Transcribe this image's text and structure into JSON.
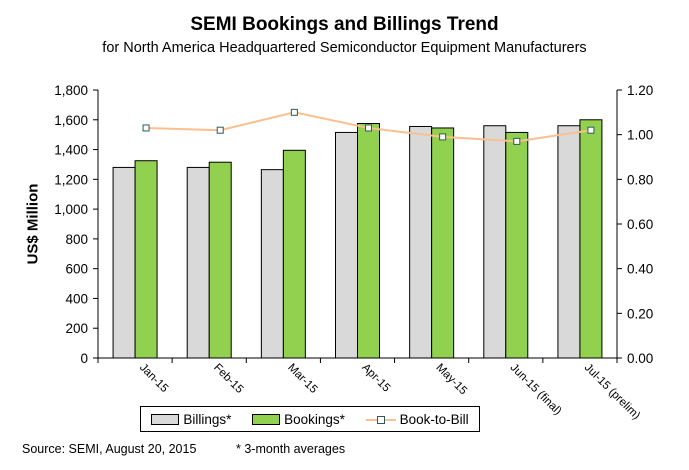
{
  "chart_data": {
    "type": "bar",
    "title": "SEMI Bookings and Billings  Trend",
    "subtitle": "for North America Headquartered Semiconductor Equipment Manufacturers",
    "ylabel": "US$ Million",
    "ylim": [
      0,
      1800
    ],
    "y_ticks": [
      "0",
      "200",
      "400",
      "600",
      "800",
      "1,000",
      "1,200",
      "1,400",
      "1,600",
      "1,800"
    ],
    "y2lim": [
      0.0,
      1.2
    ],
    "y2_ticks": [
      "0.00",
      "0.20",
      "0.40",
      "0.60",
      "0.80",
      "1.00",
      "1.20"
    ],
    "categories": [
      "Jan-15",
      "Feb-15",
      "Mar-15",
      "Apr-15",
      "May-15",
      "Jun-15 (final)",
      "Jul-15 (prelim)"
    ],
    "series": [
      {
        "name": "Billings*",
        "type": "bar",
        "color": "#d9d9d9",
        "values": [
          1280,
          1280,
          1265,
          1515,
          1555,
          1560,
          1560
        ]
      },
      {
        "name": "Bookings*",
        "type": "bar",
        "color": "#92d050",
        "values": [
          1325,
          1315,
          1395,
          1575,
          1545,
          1515,
          1600
        ]
      },
      {
        "name": "Book-to-Bill",
        "type": "line",
        "axis": "right",
        "color": "#fac090",
        "marker_color": "#2e5b57",
        "values": [
          1.03,
          1.02,
          1.1,
          1.03,
          0.99,
          0.97,
          1.02
        ]
      }
    ],
    "grid": false,
    "legend_position": "bottom"
  },
  "footer": {
    "source": "Source: SEMI, August 20, 2015",
    "note": "* 3-month averages"
  }
}
